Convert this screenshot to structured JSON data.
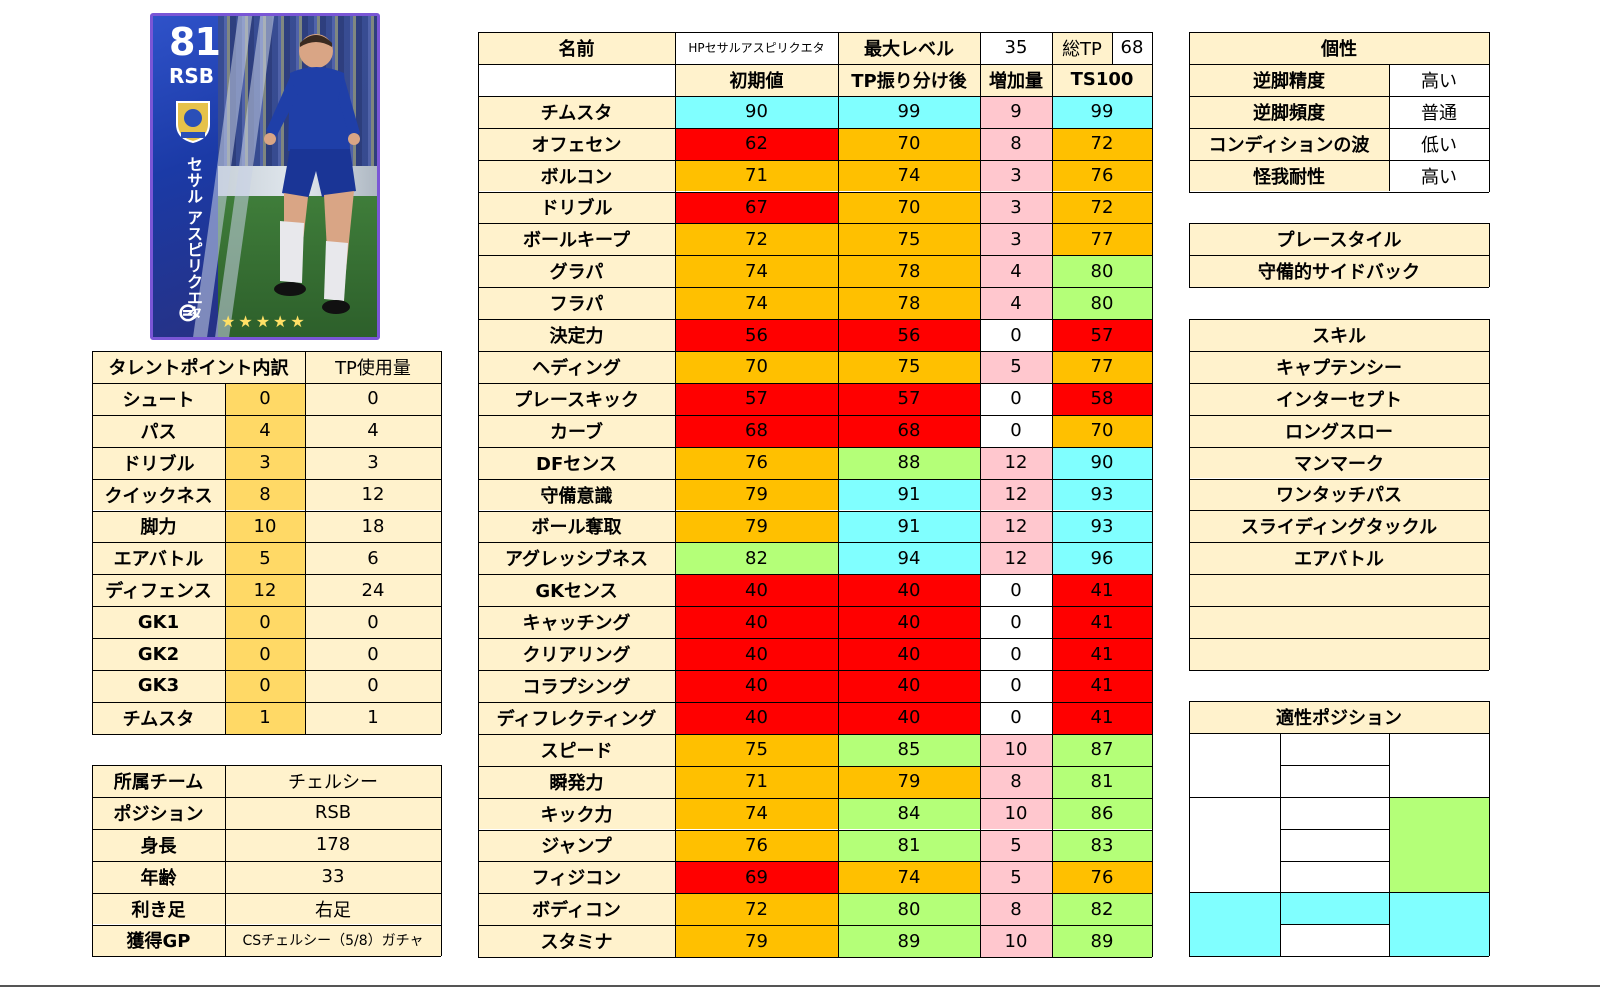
{
  "card": {
    "rating": "81",
    "position": "RSB",
    "name_vertical": "セサル アスピリクエタ",
    "stars": "★★★★★",
    "logo": "⊜"
  },
  "main_table": {
    "name_label": "名前",
    "name_value": "HPセサルアスピリクエタ",
    "max_level_label": "最大レベル",
    "max_level_value": "35",
    "total_tp_label": "総TP",
    "total_tp_value": "68",
    "headers": [
      "",
      "初期値",
      "TP振り分け後",
      "増加量",
      "TS100"
    ],
    "rows": [
      {
        "name": "チムスタ",
        "init": "90",
        "after": "99",
        "inc": "9",
        "ts": "99"
      },
      {
        "name": "オフェセン",
        "init": "62",
        "after": "70",
        "inc": "8",
        "ts": "72"
      },
      {
        "name": "ボルコン",
        "init": "71",
        "after": "74",
        "inc": "3",
        "ts": "76"
      },
      {
        "name": "ドリブル",
        "init": "67",
        "after": "70",
        "inc": "3",
        "ts": "72"
      },
      {
        "name": "ボールキープ",
        "init": "72",
        "after": "75",
        "inc": "3",
        "ts": "77"
      },
      {
        "name": "グラパ",
        "init": "74",
        "after": "78",
        "inc": "4",
        "ts": "80"
      },
      {
        "name": "フラパ",
        "init": "74",
        "after": "78",
        "inc": "4",
        "ts": "80"
      },
      {
        "name": "決定力",
        "init": "56",
        "after": "56",
        "inc": "0",
        "ts": "57"
      },
      {
        "name": "ヘディング",
        "init": "70",
        "after": "75",
        "inc": "5",
        "ts": "77"
      },
      {
        "name": "プレースキック",
        "init": "57",
        "after": "57",
        "inc": "0",
        "ts": "58"
      },
      {
        "name": "カーブ",
        "init": "68",
        "after": "68",
        "inc": "0",
        "ts": "70"
      },
      {
        "name": "DFセンス",
        "init": "76",
        "after": "88",
        "inc": "12",
        "ts": "90"
      },
      {
        "name": "守備意識",
        "init": "79",
        "after": "91",
        "inc": "12",
        "ts": "93"
      },
      {
        "name": "ボール奪取",
        "init": "79",
        "after": "91",
        "inc": "12",
        "ts": "93"
      },
      {
        "name": "アグレッシブネス",
        "init": "82",
        "after": "94",
        "inc": "12",
        "ts": "96"
      },
      {
        "name": "GKセンス",
        "init": "40",
        "after": "40",
        "inc": "0",
        "ts": "41"
      },
      {
        "name": "キャッチング",
        "init": "40",
        "after": "40",
        "inc": "0",
        "ts": "41"
      },
      {
        "name": "クリアリング",
        "init": "40",
        "after": "40",
        "inc": "0",
        "ts": "41"
      },
      {
        "name": "コラプシング",
        "init": "40",
        "after": "40",
        "inc": "0",
        "ts": "41"
      },
      {
        "name": "ディフレクティング",
        "init": "40",
        "after": "40",
        "inc": "0",
        "ts": "41"
      },
      {
        "name": "スピード",
        "init": "75",
        "after": "85",
        "inc": "10",
        "ts": "87"
      },
      {
        "name": "瞬発力",
        "init": "71",
        "after": "79",
        "inc": "8",
        "ts": "81"
      },
      {
        "name": "キック力",
        "init": "74",
        "after": "84",
        "inc": "10",
        "ts": "86"
      },
      {
        "name": "ジャンプ",
        "init": "76",
        "after": "81",
        "inc": "5",
        "ts": "83"
      },
      {
        "name": "フィジコン",
        "init": "69",
        "after": "74",
        "inc": "5",
        "ts": "76"
      },
      {
        "name": "ボディコン",
        "init": "72",
        "after": "80",
        "inc": "8",
        "ts": "82"
      },
      {
        "name": "スタミナ",
        "init": "79",
        "after": "89",
        "inc": "10",
        "ts": "89"
      }
    ]
  },
  "tp_table": {
    "header_label": "タレントポイント内訳",
    "header_used": "TP使用量",
    "rows": [
      {
        "name": "シュート",
        "points": "0",
        "used": "0"
      },
      {
        "name": "パス",
        "points": "4",
        "used": "4"
      },
      {
        "name": "ドリブル",
        "points": "3",
        "used": "3"
      },
      {
        "name": "クイックネス",
        "points": "8",
        "used": "12"
      },
      {
        "name": "脚力",
        "points": "10",
        "used": "18"
      },
      {
        "name": "エアバトル",
        "points": "5",
        "used": "6"
      },
      {
        "name": "ディフェンス",
        "points": "12",
        "used": "24"
      },
      {
        "name": "GK1",
        "points": "0",
        "used": "0"
      },
      {
        "name": "GK2",
        "points": "0",
        "used": "0"
      },
      {
        "name": "GK3",
        "points": "0",
        "used": "0"
      },
      {
        "name": "チムスタ",
        "points": "1",
        "used": "1"
      }
    ]
  },
  "info_table": {
    "rows": [
      {
        "label": "所属チーム",
        "value": "チェルシー"
      },
      {
        "label": "ポジション",
        "value": "RSB"
      },
      {
        "label": "身長",
        "value": "178"
      },
      {
        "label": "年齢",
        "value": "33"
      },
      {
        "label": "利き足",
        "value": "右足"
      },
      {
        "label": "獲得GP",
        "value": "CSチェルシー（5/8）ガチャ"
      }
    ]
  },
  "traits_table": {
    "title": "個性",
    "rows": [
      {
        "label": "逆脚精度",
        "value": "高い"
      },
      {
        "label": "逆脚頻度",
        "value": "普通"
      },
      {
        "label": "コンディションの波",
        "value": "低い"
      },
      {
        "label": "怪我耐性",
        "value": "高い"
      }
    ]
  },
  "playstyle_table": {
    "title": "プレースタイル",
    "value": "守備的サイドバック"
  },
  "skills_table": {
    "title": "スキル",
    "items": [
      "キャプテンシー",
      "インターセプト",
      "ロングスロー",
      "マンマーク",
      "ワンタッチパス",
      "スライディングタックル",
      "エアバトル",
      "",
      "",
      ""
    ]
  },
  "positions_table": {
    "title": "適性ポジション"
  },
  "colors": {
    "header_bg": "#fff2cc",
    "label_bg": "#fff2cc",
    "tp_points_bg": "#ffd966",
    "red": "#ff0000",
    "orange": "#ffc000",
    "green": "#b4ff78",
    "cyan": "#80ffff",
    "pink": "#ffc7ce",
    "white": "#ffffff"
  }
}
